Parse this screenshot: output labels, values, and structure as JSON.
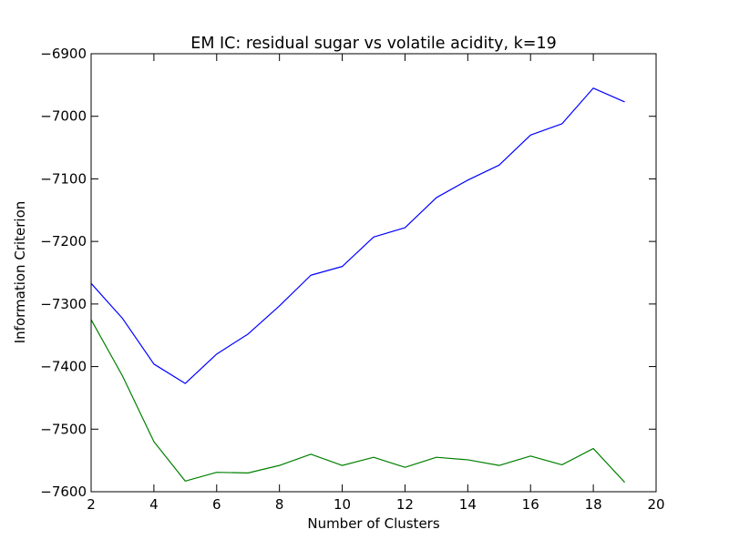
{
  "chart_data": {
    "type": "line",
    "title": "EM IC: residual sugar vs volatile acidity, k=19",
    "xlabel": "Number of Clusters",
    "ylabel": "Information Criterion",
    "xlim": [
      2,
      20
    ],
    "ylim": [
      -7600,
      -6900
    ],
    "xticks": [
      2,
      4,
      6,
      8,
      10,
      12,
      14,
      16,
      18,
      20
    ],
    "yticks": [
      -7600,
      -7500,
      -7400,
      -7300,
      -7200,
      -7100,
      -7000,
      -6900
    ],
    "grid": false,
    "legend": "none",
    "x": [
      2,
      3,
      4,
      5,
      6,
      7,
      8,
      9,
      10,
      11,
      12,
      13,
      14,
      15,
      16,
      17,
      18,
      19
    ],
    "series": [
      {
        "color": "#0000ff",
        "values": [
          -7267,
          -7323,
          -7396,
          -7427,
          -7380,
          -7348,
          -7303,
          -7254,
          -7240,
          -7193,
          -7178,
          -7130,
          -7102,
          -7078,
          -7030,
          -7012,
          -6955,
          -6977
        ]
      },
      {
        "color": "#008000",
        "values": [
          -7325,
          -7415,
          -7520,
          -7583,
          -7569,
          -7570,
          -7558,
          -7540,
          -7558,
          -7545,
          -7561,
          -7545,
          -7549,
          -7558,
          -7543,
          -7557,
          -7531,
          -7585
        ]
      }
    ]
  }
}
